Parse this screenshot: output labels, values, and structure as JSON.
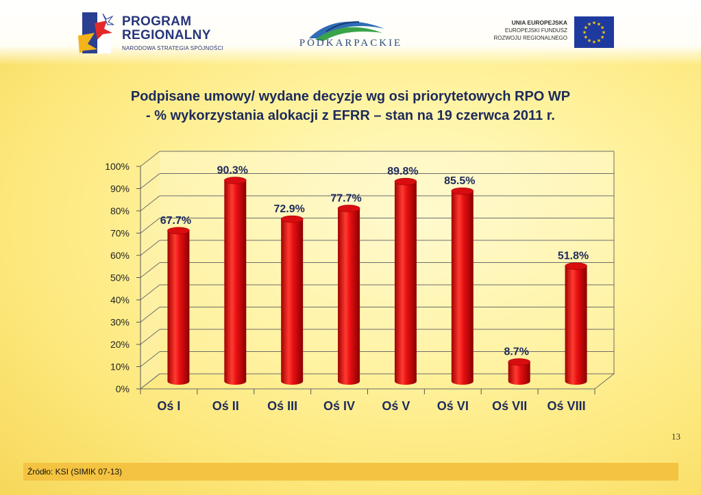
{
  "logos": {
    "program": {
      "line1": "PROGRAM",
      "line2": "REGIONALNY",
      "line3": "NARODOWA STRATEGIA SPÓJNOŚCI"
    },
    "region": {
      "name": "PODKARPACKIE"
    },
    "eu": {
      "line1": "UNIA EUROPEJSKA",
      "line2": "EUROPEJSKI FUNDUSZ",
      "line3": "ROZWOJU REGIONALNEGO"
    }
  },
  "title": {
    "line1": "Podpisane umowy/ wydane decyzje wg osi priorytetowych RPO WP",
    "line2": "- % wykorzystania alokacji z EFRR – stan na 19 czerwca 2011 r."
  },
  "colors": {
    "bar": "#e10d12",
    "bar_dark": "#a00000",
    "bar_light": "#ff5a50",
    "title": "#1d2a5a",
    "source_bar": "#f4c341"
  },
  "chart_data": {
    "type": "bar",
    "categories": [
      "Oś I",
      "Oś II",
      "Oś III",
      "Oś IV",
      "Oś V",
      "Oś VI",
      "Oś VII",
      "Oś VIII"
    ],
    "values": [
      67.7,
      90.3,
      72.9,
      77.7,
      89.8,
      85.5,
      8.7,
      51.8
    ],
    "value_labels": [
      "67.7%",
      "90.3%",
      "72.9%",
      "77.7%",
      "89.8%",
      "85.5%",
      "8.7%",
      "51.8%"
    ],
    "ylim": [
      0,
      100
    ],
    "yticks": [
      "0%",
      "10%",
      "20%",
      "30%",
      "40%",
      "50%",
      "60%",
      "70%",
      "80%",
      "90%",
      "100%"
    ],
    "grid": true,
    "legend": "none",
    "style": "3d-cylinder"
  },
  "page_number": "13",
  "source": "Źródło: KSI (SIMIK 07-13)"
}
